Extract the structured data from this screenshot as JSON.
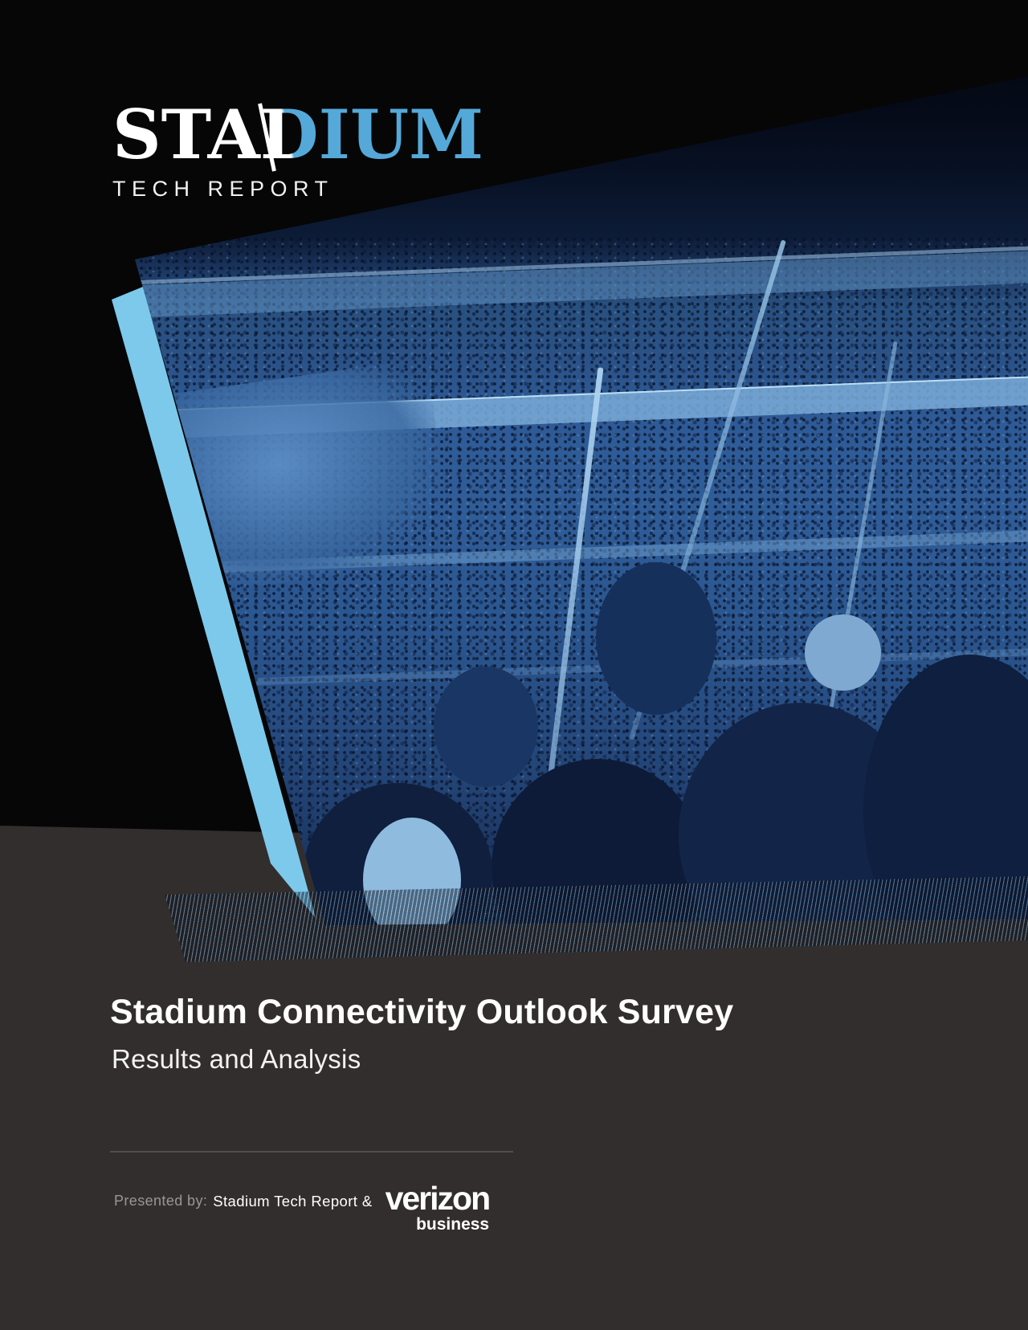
{
  "logo": {
    "word_white": "STA",
    "word_split": "D",
    "word_blue": "IUM",
    "tagline": "TECH REPORT",
    "blue": "#54a9d9"
  },
  "cover": {
    "photo": "stadium-crowd-photo-blue-duotone",
    "accent_stripe_color": "#7cc9ec",
    "background_black": "#060607",
    "background_gray": "#322e2d"
  },
  "titles": {
    "title": "Stadium Connectivity Outlook Survey",
    "subtitle": "Results and Analysis"
  },
  "footer": {
    "presented_by": "Presented by:",
    "partner": "Stadium Tech Report &",
    "verizon": "verizon",
    "verizon_sub": "business"
  }
}
